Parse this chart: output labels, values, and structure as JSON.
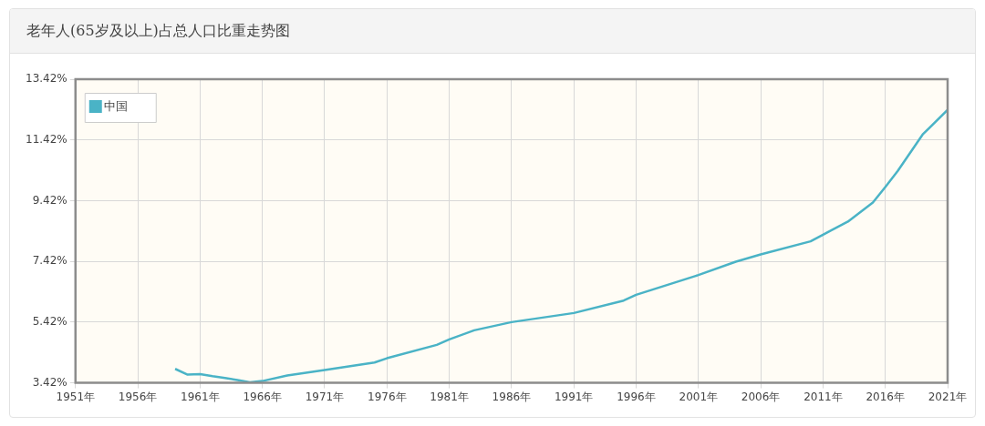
{
  "chart_data": {
    "type": "line",
    "title": "老年人(65岁及以上)占总人口比重走势图",
    "x": [
      1959,
      1960,
      1961,
      1962,
      1963,
      1964,
      1965,
      1966,
      1968,
      1971,
      1975,
      1976,
      1980,
      1981,
      1983,
      1986,
      1991,
      1995,
      1996,
      2001,
      2004,
      2006,
      2010,
      2011,
      2013,
      2015,
      2016,
      2017,
      2019,
      2021
    ],
    "series": [
      {
        "name": "中国",
        "color": "#4ab3c6",
        "values": [
          3.88,
          3.69,
          3.71,
          3.64,
          3.58,
          3.51,
          3.44,
          3.48,
          3.66,
          3.84,
          4.09,
          4.23,
          4.67,
          4.85,
          5.15,
          5.42,
          5.72,
          6.13,
          6.32,
          6.97,
          7.41,
          7.65,
          8.08,
          8.3,
          8.73,
          9.36,
          9.87,
          10.4,
          11.6,
          12.41
        ]
      }
    ],
    "xlim": [
      1951,
      2021
    ],
    "xticks": [
      {
        "value": 1951,
        "label": "1951年"
      },
      {
        "value": 1956,
        "label": "1956年"
      },
      {
        "value": 1961,
        "label": "1961年"
      },
      {
        "value": 1966,
        "label": "1966年"
      },
      {
        "value": 1971,
        "label": "1971年"
      },
      {
        "value": 1976,
        "label": "1976年"
      },
      {
        "value": 1981,
        "label": "1981年"
      },
      {
        "value": 1986,
        "label": "1986年"
      },
      {
        "value": 1991,
        "label": "1991年"
      },
      {
        "value": 1996,
        "label": "1996年"
      },
      {
        "value": 2001,
        "label": "2001年"
      },
      {
        "value": 2006,
        "label": "2006年"
      },
      {
        "value": 2011,
        "label": "2011年"
      },
      {
        "value": 2016,
        "label": "2016年"
      },
      {
        "value": 2021,
        "label": "2021年"
      }
    ],
    "ylim": [
      3.42,
      13.42
    ],
    "yticks": [
      {
        "value": 3.42,
        "label": "3.42%"
      },
      {
        "value": 5.42,
        "label": "5.42%"
      },
      {
        "value": 7.42,
        "label": "7.42%"
      },
      {
        "value": 9.42,
        "label": "9.42%"
      },
      {
        "value": 11.42,
        "label": "11.42%"
      },
      {
        "value": 13.42,
        "label": "13.42%"
      }
    ],
    "grid": true,
    "legend": "top left",
    "marker": "none",
    "line_style": "solid"
  }
}
